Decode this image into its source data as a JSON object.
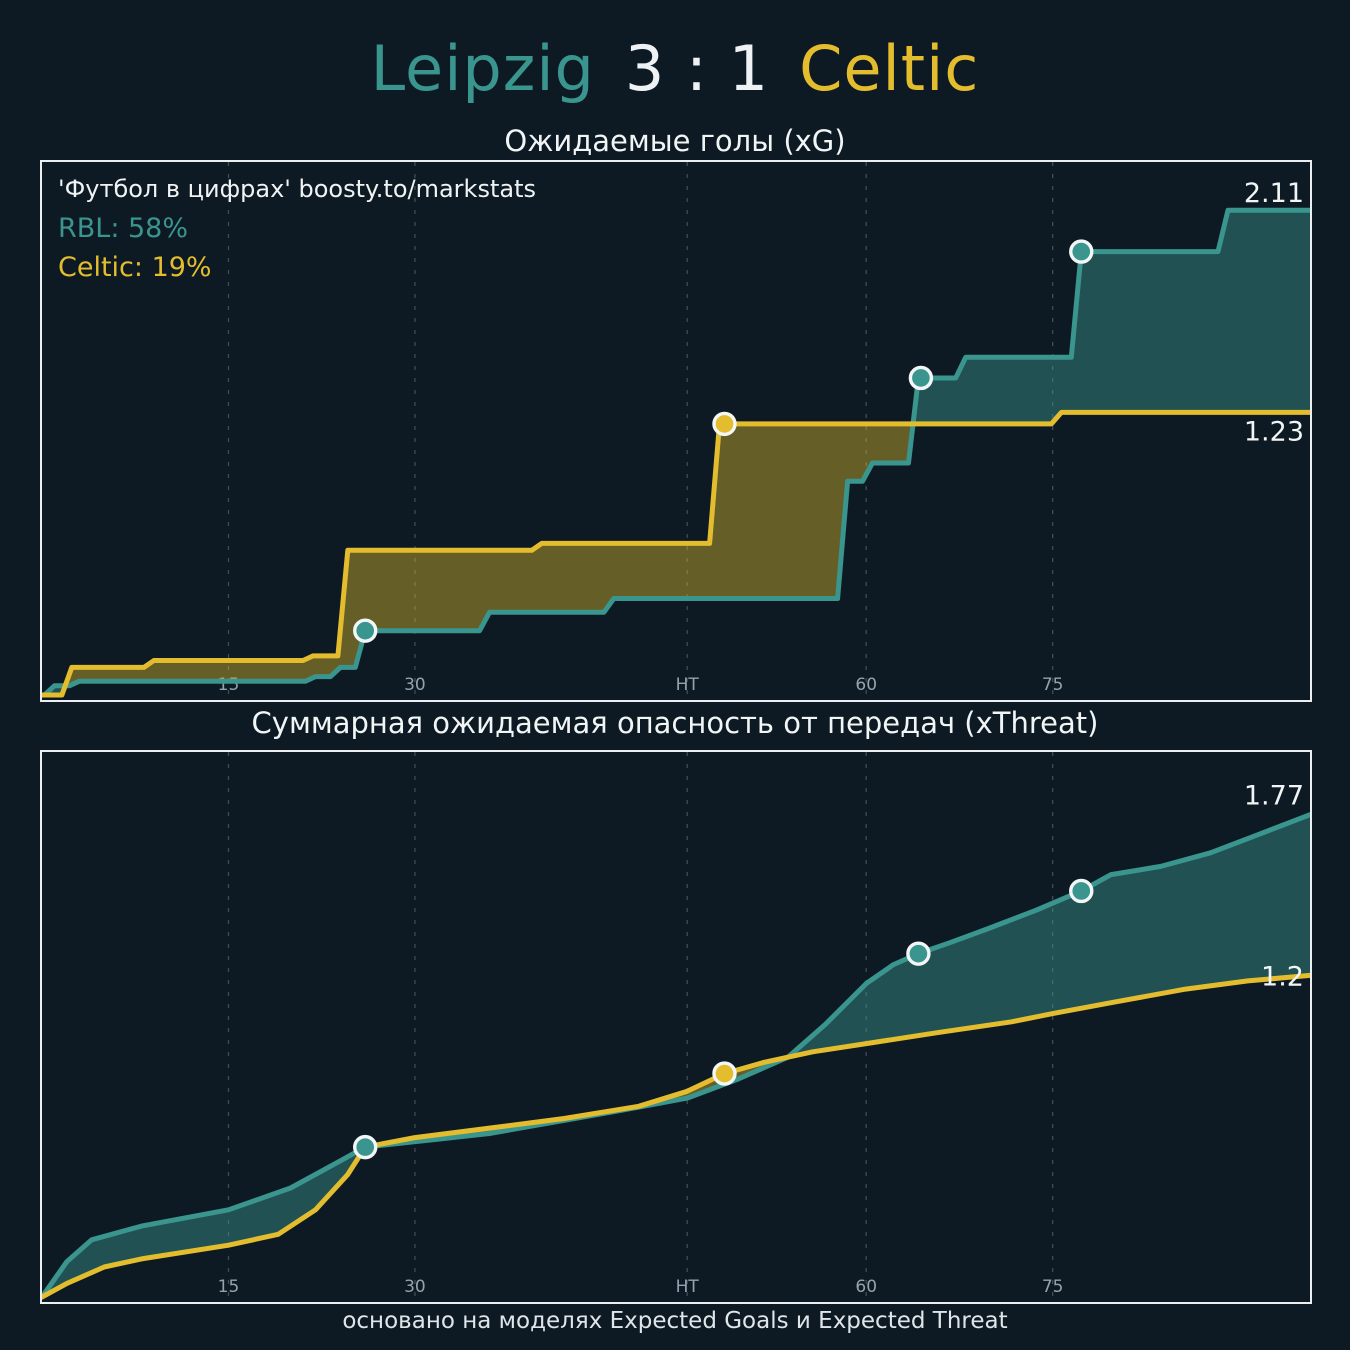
{
  "page": {
    "background": "#0d1a23",
    "footer": "основано на моделях Expected Goals и Expected Threat"
  },
  "header": {
    "home_team": "Leipzig",
    "score": "3 : 1",
    "away_team": "Celtic",
    "home_color": "#3a958f",
    "away_color": "#e3bd2d"
  },
  "annotations": {
    "watermark": "'Футбол в цифрах' boosty.to/markstats",
    "home_prob": "RBL: 58%",
    "away_prob": "Celtic: 19%"
  },
  "chart_data": [
    {
      "id": "xg",
      "type": "step-line",
      "title": "Ожидаемые голы (xG)",
      "x_unit": "match timeline, minutes (stoppage included)",
      "x_domain": [
        0,
        102
      ],
      "y_domain": [
        0,
        2.32
      ],
      "grid": "vertical-dashed",
      "legend": "none",
      "ticks": [
        {
          "x": 15,
          "label": "15"
        },
        {
          "x": 30,
          "label": "30"
        },
        {
          "x": 51.9,
          "label": "HT"
        },
        {
          "x": 66.3,
          "label": "60"
        },
        {
          "x": 81.3,
          "label": "75"
        }
      ],
      "series": [
        {
          "name": "Leipzig",
          "color": "#3a958f",
          "fill": "rgba(58,149,143,0.45)",
          "end_label": "2.11",
          "label_dy": -8,
          "points": [
            [
              0,
              0
            ],
            [
              1,
              0.04
            ],
            [
              3,
              0.06
            ],
            [
              22,
              0.08
            ],
            [
              24,
              0.12
            ],
            [
              26,
              0.28
            ],
            [
              36,
              0.36
            ],
            [
              46,
              0.42
            ],
            [
              64.8,
              0.93
            ],
            [
              66.8,
              1.01
            ],
            [
              70.5,
              1.38
            ],
            [
              74.3,
              1.47
            ],
            [
              83.6,
              1.93
            ],
            [
              95.4,
              2.11
            ]
          ]
        },
        {
          "name": "Celtic",
          "color": "#e3bd2d",
          "fill": "rgba(227,189,45,0.42)",
          "end_label": "1.23",
          "label_dy": 28,
          "points": [
            [
              0,
              0
            ],
            [
              2.4,
              0.12
            ],
            [
              9,
              0.15
            ],
            [
              21.8,
              0.17
            ],
            [
              24.6,
              0.63
            ],
            [
              40.2,
              0.66
            ],
            [
              54.5,
              1.18
            ],
            [
              82,
              1.23
            ]
          ]
        }
      ],
      "goals": [
        {
          "team": "Leipzig",
          "x": 26,
          "y": 0.28
        },
        {
          "team": "Celtic",
          "x": 54.9,
          "y": 1.18
        },
        {
          "team": "Leipzig",
          "x": 70.7,
          "y": 1.38
        },
        {
          "team": "Leipzig",
          "x": 83.6,
          "y": 1.93
        }
      ]
    },
    {
      "id": "xthreat",
      "type": "line",
      "title": "Суммарная ожидаемая опасность от передач (xThreat)",
      "x_unit": "match timeline, minutes (stoppage included)",
      "x_domain": [
        0,
        102
      ],
      "y_domain": [
        0,
        2.0
      ],
      "grid": "vertical-dashed",
      "legend": "none",
      "ticks": [
        {
          "x": 15,
          "label": "15"
        },
        {
          "x": 30,
          "label": "30"
        },
        {
          "x": 51.9,
          "label": "HT"
        },
        {
          "x": 66.3,
          "label": "60"
        },
        {
          "x": 81.3,
          "label": "75"
        }
      ],
      "series": [
        {
          "name": "Leipzig",
          "color": "#3a958f",
          "fill": "rgba(58,149,143,0.45)",
          "end_label": "1.77",
          "label_dy": -10,
          "points": [
            [
              0,
              0
            ],
            [
              2,
              0.13
            ],
            [
              4,
              0.21
            ],
            [
              8,
              0.26
            ],
            [
              15,
              0.32
            ],
            [
              20,
              0.4
            ],
            [
              24,
              0.5
            ],
            [
              26,
              0.55
            ],
            [
              30,
              0.57
            ],
            [
              36,
              0.6
            ],
            [
              46,
              0.68
            ],
            [
              51.9,
              0.73
            ],
            [
              56,
              0.8
            ],
            [
              60,
              0.88
            ],
            [
              63,
              1.0
            ],
            [
              66.3,
              1.15
            ],
            [
              68.5,
              1.22
            ],
            [
              70.5,
              1.26
            ],
            [
              73,
              1.3
            ],
            [
              76,
              1.35
            ],
            [
              80,
              1.42
            ],
            [
              83.6,
              1.49
            ],
            [
              86,
              1.55
            ],
            [
              90,
              1.58
            ],
            [
              94,
              1.63
            ],
            [
              98,
              1.7
            ],
            [
              102,
              1.77
            ]
          ]
        },
        {
          "name": "Celtic",
          "color": "#e3bd2d",
          "fill": "rgba(227,189,45,0.42)",
          "end_label": "1.2",
          "label_dy": 10,
          "points": [
            [
              0,
              0
            ],
            [
              2,
              0.05
            ],
            [
              5,
              0.11
            ],
            [
              8,
              0.14
            ],
            [
              15,
              0.19
            ],
            [
              19,
              0.23
            ],
            [
              22,
              0.32
            ],
            [
              24.6,
              0.45
            ],
            [
              26,
              0.55
            ],
            [
              30,
              0.585
            ],
            [
              36,
              0.62
            ],
            [
              42,
              0.655
            ],
            [
              48,
              0.7
            ],
            [
              51.9,
              0.755
            ],
            [
              54.9,
              0.82
            ],
            [
              58,
              0.86
            ],
            [
              62,
              0.9
            ],
            [
              66.3,
              0.93
            ],
            [
              72,
              0.97
            ],
            [
              78,
              1.01
            ],
            [
              81.3,
              1.04
            ],
            [
              86,
              1.08
            ],
            [
              92,
              1.13
            ],
            [
              97,
              1.16
            ],
            [
              102,
              1.18
            ]
          ]
        }
      ],
      "goals": [
        {
          "team": "Leipzig",
          "x": 26,
          "y": 0.55
        },
        {
          "team": "Celtic",
          "x": 54.9,
          "y": 0.82
        },
        {
          "team": "Leipzig",
          "x": 70.5,
          "y": 1.26
        },
        {
          "team": "Leipzig",
          "x": 83.6,
          "y": 1.49
        }
      ]
    }
  ]
}
